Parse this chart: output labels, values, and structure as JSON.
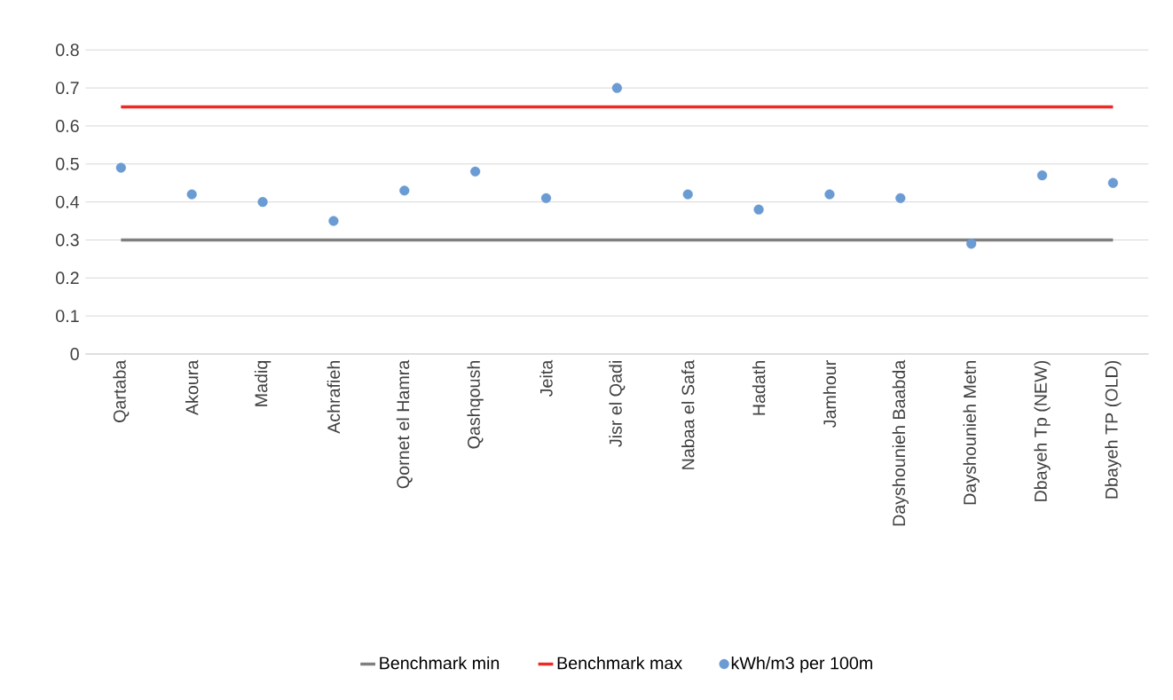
{
  "chart_data": {
    "type": "scatter",
    "categories": [
      "Qartaba",
      "Akoura",
      "Madiq",
      "Achrafieh",
      "Qornet el Hamra",
      "Qashqoush",
      "Jeita",
      "Jisr el Qadi",
      "Nabaa el Safa",
      "Hadath",
      "Jamhour",
      "Dayshounieh Baabda",
      "Dayshounieh Metn",
      "Dbayeh Tp (NEW)",
      "Dbayeh TP (OLD)"
    ],
    "series": [
      {
        "name": "Benchmark min",
        "type": "line",
        "marker": "none",
        "color": "#7f7f7f",
        "values": [
          0.3,
          0.3,
          0.3,
          0.3,
          0.3,
          0.3,
          0.3,
          0.3,
          0.3,
          0.3,
          0.3,
          0.3,
          0.3,
          0.3,
          0.3
        ]
      },
      {
        "name": "Benchmark max",
        "type": "line",
        "marker": "none",
        "color": "#ee2a24",
        "values": [
          0.65,
          0.65,
          0.65,
          0.65,
          0.65,
          0.65,
          0.65,
          0.65,
          0.65,
          0.65,
          0.65,
          0.65,
          0.65,
          0.65,
          0.65
        ]
      },
      {
        "name": "kWh/m3 per 100m",
        "marker": "circle",
        "color": "#6a9bd3",
        "values": [
          0.49,
          0.42,
          0.4,
          0.35,
          0.43,
          0.48,
          0.41,
          0.7,
          0.42,
          0.38,
          0.42,
          0.41,
          0.29,
          0.47,
          0.45
        ]
      }
    ],
    "ylim": [
      0,
      0.8
    ],
    "yticks": [
      0,
      0.1,
      0.2,
      0.3,
      0.4,
      0.5,
      0.6,
      0.7,
      0.8
    ],
    "grid": "y",
    "legend": "bottom",
    "line_style": "solid"
  }
}
